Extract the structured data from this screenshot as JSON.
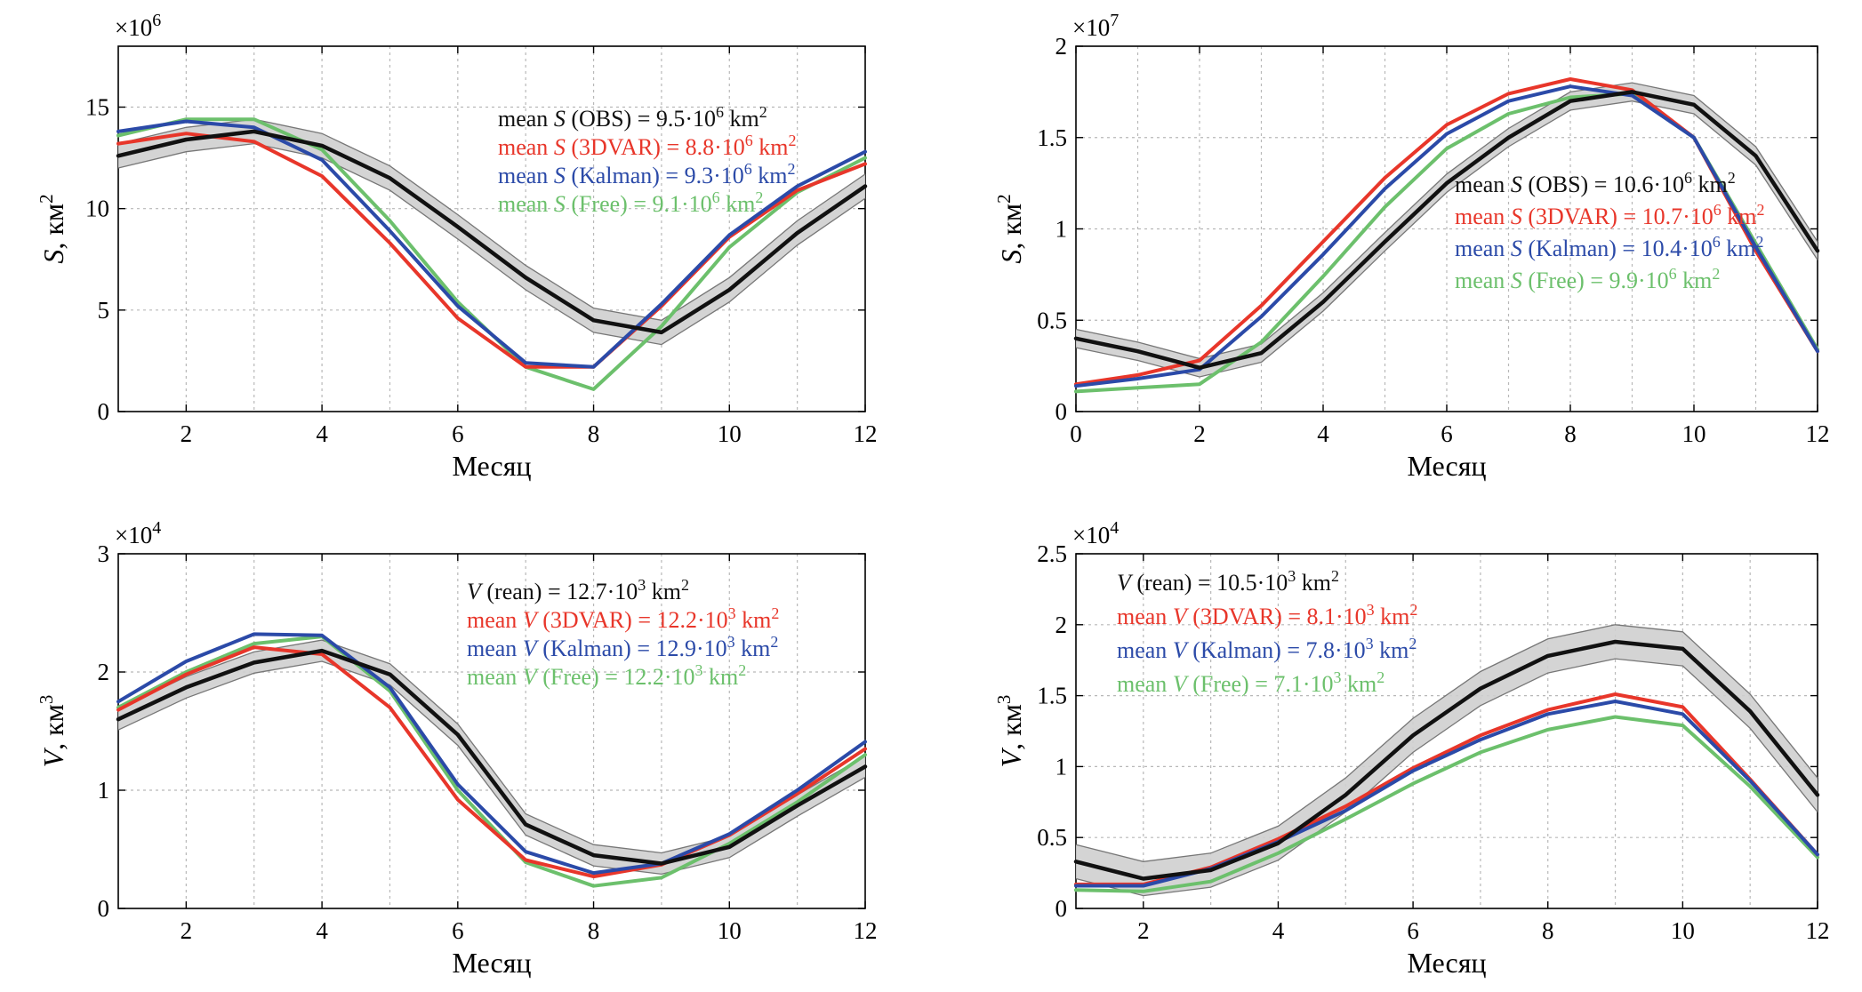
{
  "colors": {
    "obs": "#111111",
    "threedvar": "#e8362a",
    "kalman": "#2b4aa8",
    "free": "#6cc06c",
    "band": "#cfcfcf"
  },
  "chart_data": [
    {
      "type": "line",
      "id": "tl",
      "xlabel": "Месяц",
      "ylabel": [
        "S",
        ", км",
        "2"
      ],
      "multiplier": "×10",
      "multiplier_exp": "6",
      "xlim": [
        1,
        12
      ],
      "ylim": [
        0,
        18
      ],
      "xticks": [
        "2",
        "4",
        "6",
        "8",
        "10",
        "12"
      ],
      "yticks": [
        "0",
        "5",
        "10",
        "15"
      ],
      "legend": [
        {
          "prefix": "mean ",
          "var": "S",
          "rest": " (OBS) = 9.5·10",
          "exp": "6",
          "unit": " km",
          "unit_exp": "2",
          "color": "#111111"
        },
        {
          "prefix": "mean ",
          "var": "S",
          "rest": " (3DVAR) = 8.8·10",
          "exp": "6",
          "unit": " km",
          "unit_exp": "2",
          "color": "#e8362a"
        },
        {
          "prefix": "mean ",
          "var": "S",
          "rest": " (Kalman) = 9.3·10",
          "exp": "6",
          "unit": " km",
          "unit_exp": "2",
          "color": "#2b4aa8"
        },
        {
          "prefix": "mean ",
          "var": "S",
          "rest": " (Free) = 9.1·10",
          "exp": "6",
          "unit": " km",
          "unit_exp": "2",
          "color": "#6cc06c"
        }
      ],
      "series": [
        {
          "key": "obs",
          "x": [
            1,
            2,
            3,
            4,
            5,
            6,
            7,
            8,
            9,
            10,
            11,
            12
          ],
          "values": [
            12.6,
            13.4,
            13.8,
            13.1,
            11.5,
            9.1,
            6.6,
            4.5,
            3.9,
            6.0,
            8.8,
            11.1
          ],
          "band": 0.6
        },
        {
          "key": "threedvar",
          "x": [
            1,
            2,
            3,
            4,
            5,
            6,
            7,
            8,
            9,
            10,
            11,
            12
          ],
          "values": [
            13.2,
            13.7,
            13.3,
            11.6,
            8.3,
            4.6,
            2.2,
            2.2,
            5.2,
            8.6,
            10.9,
            12.2
          ]
        },
        {
          "key": "kalman",
          "x": [
            1,
            2,
            3,
            4,
            5,
            6,
            7,
            8,
            9,
            10,
            11,
            12
          ],
          "values": [
            13.8,
            14.3,
            14.0,
            12.4,
            8.9,
            5.2,
            2.4,
            2.2,
            5.3,
            8.7,
            11.1,
            12.8
          ]
        },
        {
          "key": "free",
          "x": [
            1,
            2,
            3,
            4,
            5,
            6,
            7,
            8,
            9,
            10,
            11,
            12
          ],
          "values": [
            13.6,
            14.4,
            14.4,
            12.9,
            9.4,
            5.4,
            2.2,
            1.1,
            4.2,
            8.1,
            10.8,
            12.5
          ]
        }
      ]
    },
    {
      "type": "line",
      "id": "tr",
      "xlabel": "Месяц",
      "ylabel": [
        "S",
        ", км",
        "2"
      ],
      "multiplier": "×10",
      "multiplier_exp": "7",
      "xlim": [
        0,
        12
      ],
      "ylim": [
        0,
        2
      ],
      "xticks": [
        "0",
        "2",
        "4",
        "6",
        "8",
        "10",
        "12"
      ],
      "yticks": [
        "0",
        "0.5",
        "1",
        "1.5",
        "2"
      ],
      "legend": [
        {
          "prefix": "mean ",
          "var": "S",
          "rest": " (OBS) = 10.6·10",
          "exp": "6",
          "unit": " km",
          "unit_exp": "2",
          "color": "#111111"
        },
        {
          "prefix": "mean ",
          "var": "S",
          "rest": " (3DVAR) = 10.7·10",
          "exp": "6",
          "unit": " km",
          "unit_exp": "2",
          "color": "#e8362a"
        },
        {
          "prefix": "mean ",
          "var": "S",
          "rest": " (Kalman) = 10.4·10",
          "exp": "6",
          "unit": " km",
          "unit_exp": "2",
          "color": "#2b4aa8"
        },
        {
          "prefix": "mean ",
          "var": "S",
          "rest": " (Free) = 9.9·10",
          "exp": "6",
          "unit": " km",
          "unit_exp": "2",
          "color": "#6cc06c"
        }
      ],
      "series": [
        {
          "key": "obs",
          "x": [
            0,
            1,
            2,
            3,
            4,
            5,
            6,
            7,
            8,
            9,
            10,
            11,
            12
          ],
          "values": [
            0.4,
            0.33,
            0.24,
            0.32,
            0.6,
            0.93,
            1.25,
            1.5,
            1.7,
            1.75,
            1.68,
            1.4,
            0.88
          ],
          "band": 0.05
        },
        {
          "key": "threedvar",
          "x": [
            0,
            1,
            2,
            3,
            4,
            5,
            6,
            7,
            8,
            9,
            10,
            11,
            12
          ],
          "values": [
            0.15,
            0.2,
            0.28,
            0.58,
            0.93,
            1.28,
            1.57,
            1.74,
            1.82,
            1.76,
            1.5,
            0.88,
            0.33
          ]
        },
        {
          "key": "kalman",
          "x": [
            0,
            1,
            2,
            3,
            4,
            5,
            6,
            7,
            8,
            9,
            10,
            11,
            12
          ],
          "values": [
            0.14,
            0.18,
            0.23,
            0.52,
            0.86,
            1.22,
            1.52,
            1.7,
            1.78,
            1.73,
            1.5,
            0.9,
            0.33
          ]
        },
        {
          "key": "free",
          "x": [
            0,
            1,
            2,
            3,
            4,
            5,
            6,
            7,
            8,
            9,
            10,
            11,
            12
          ],
          "values": [
            0.11,
            0.13,
            0.15,
            0.38,
            0.74,
            1.12,
            1.44,
            1.63,
            1.72,
            1.74,
            1.5,
            0.92,
            0.34
          ]
        }
      ]
    },
    {
      "type": "line",
      "id": "bl",
      "xlabel": "Месяц",
      "ylabel": [
        "V",
        ", км",
        "3"
      ],
      "multiplier": "×10",
      "multiplier_exp": "4",
      "xlim": [
        1,
        12
      ],
      "ylim": [
        0,
        3
      ],
      "xticks": [
        "2",
        "4",
        "6",
        "8",
        "10",
        "12"
      ],
      "yticks": [
        "0",
        "1",
        "2",
        "3"
      ],
      "legend": [
        {
          "prefix": "",
          "var": "V",
          "rest": " (rean) = 12.7·10",
          "exp": "3",
          "unit": " km",
          "unit_exp": "2",
          "color": "#111111"
        },
        {
          "prefix": "mean ",
          "var": "V",
          "rest": " (3DVAR) = 12.2·10",
          "exp": "3",
          "unit": " km",
          "unit_exp": "2",
          "color": "#e8362a"
        },
        {
          "prefix": "mean ",
          "var": "V",
          "rest": " (Kalman) = 12.9·10",
          "exp": "3",
          "unit": " km",
          "unit_exp": "2",
          "color": "#2b4aa8"
        },
        {
          "prefix": "mean ",
          "var": "V",
          "rest": " (Free) = 12.2·10",
          "exp": "3",
          "unit": " km",
          "unit_exp": "2",
          "color": "#6cc06c"
        }
      ],
      "series": [
        {
          "key": "obs",
          "x": [
            1,
            2,
            3,
            4,
            5,
            6,
            7,
            8,
            9,
            10,
            11,
            12
          ],
          "values": [
            1.6,
            1.87,
            2.08,
            2.18,
            1.98,
            1.47,
            0.71,
            0.45,
            0.38,
            0.52,
            0.87,
            1.2
          ],
          "band": 0.09
        },
        {
          "key": "threedvar",
          "x": [
            1,
            2,
            3,
            4,
            5,
            6,
            7,
            8,
            9,
            10,
            11,
            12
          ],
          "values": [
            1.68,
            1.98,
            2.21,
            2.15,
            1.7,
            0.92,
            0.41,
            0.27,
            0.37,
            0.62,
            0.97,
            1.35
          ]
        },
        {
          "key": "kalman",
          "x": [
            1,
            2,
            3,
            4,
            5,
            6,
            7,
            8,
            9,
            10,
            11,
            12
          ],
          "values": [
            1.75,
            2.09,
            2.32,
            2.31,
            1.87,
            1.05,
            0.48,
            0.3,
            0.38,
            0.63,
            1.0,
            1.41
          ]
        },
        {
          "key": "free",
          "x": [
            1,
            2,
            3,
            4,
            5,
            6,
            7,
            8,
            9,
            10,
            11,
            12
          ],
          "values": [
            1.7,
            2.0,
            2.24,
            2.3,
            1.84,
            1.0,
            0.39,
            0.19,
            0.26,
            0.55,
            0.9,
            1.3
          ]
        }
      ]
    },
    {
      "type": "line",
      "id": "br",
      "xlabel": "Месяц",
      "ylabel": [
        "V",
        ", км",
        "3"
      ],
      "multiplier": "×10",
      "multiplier_exp": "4",
      "xlim": [
        1,
        12
      ],
      "ylim": [
        0,
        2.5
      ],
      "xticks": [
        "2",
        "4",
        "6",
        "8",
        "10",
        "12"
      ],
      "yticks": [
        "0",
        "0.5",
        "1",
        "1.5",
        "2",
        "2.5"
      ],
      "legend": [
        {
          "prefix": "",
          "var": "V",
          "rest": " (rean) = 10.5·10",
          "exp": "3",
          "unit": " km",
          "unit_exp": "2",
          "color": "#111111"
        },
        {
          "prefix": "mean ",
          "var": "V",
          "rest": " (3DVAR) = 8.1·10",
          "exp": "3",
          "unit": " km",
          "unit_exp": "2",
          "color": "#e8362a"
        },
        {
          "prefix": "mean ",
          "var": "V",
          "rest": " (Kalman) = 7.8·10",
          "exp": "3",
          "unit": " km",
          "unit_exp": "2",
          "color": "#2b4aa8"
        },
        {
          "prefix": "mean ",
          "var": "V",
          "rest": " (Free) = 7.1·10",
          "exp": "3",
          "unit": " km",
          "unit_exp": "2",
          "color": "#6cc06c"
        }
      ],
      "series": [
        {
          "key": "obs",
          "x": [
            1,
            2,
            3,
            4,
            5,
            6,
            7,
            8,
            9,
            10,
            11,
            12
          ],
          "values": [
            0.33,
            0.21,
            0.27,
            0.46,
            0.8,
            1.22,
            1.55,
            1.78,
            1.88,
            1.83,
            1.39,
            0.8
          ],
          "band": 0.12
        },
        {
          "key": "threedvar",
          "x": [
            1,
            2,
            3,
            4,
            5,
            6,
            7,
            8,
            9,
            10,
            11,
            12
          ],
          "values": [
            0.17,
            0.17,
            0.29,
            0.49,
            0.72,
            0.99,
            1.22,
            1.4,
            1.51,
            1.42,
            0.91,
            0.38
          ]
        },
        {
          "key": "kalman",
          "x": [
            1,
            2,
            3,
            4,
            5,
            6,
            7,
            8,
            9,
            10,
            11,
            12
          ],
          "values": [
            0.16,
            0.16,
            0.28,
            0.47,
            0.69,
            0.97,
            1.19,
            1.37,
            1.46,
            1.37,
            0.9,
            0.38
          ]
        },
        {
          "key": "free",
          "x": [
            1,
            2,
            3,
            4,
            5,
            6,
            7,
            8,
            9,
            10,
            11,
            12
          ],
          "values": [
            0.13,
            0.12,
            0.19,
            0.39,
            0.63,
            0.88,
            1.1,
            1.26,
            1.35,
            1.29,
            0.86,
            0.36
          ]
        }
      ]
    }
  ]
}
